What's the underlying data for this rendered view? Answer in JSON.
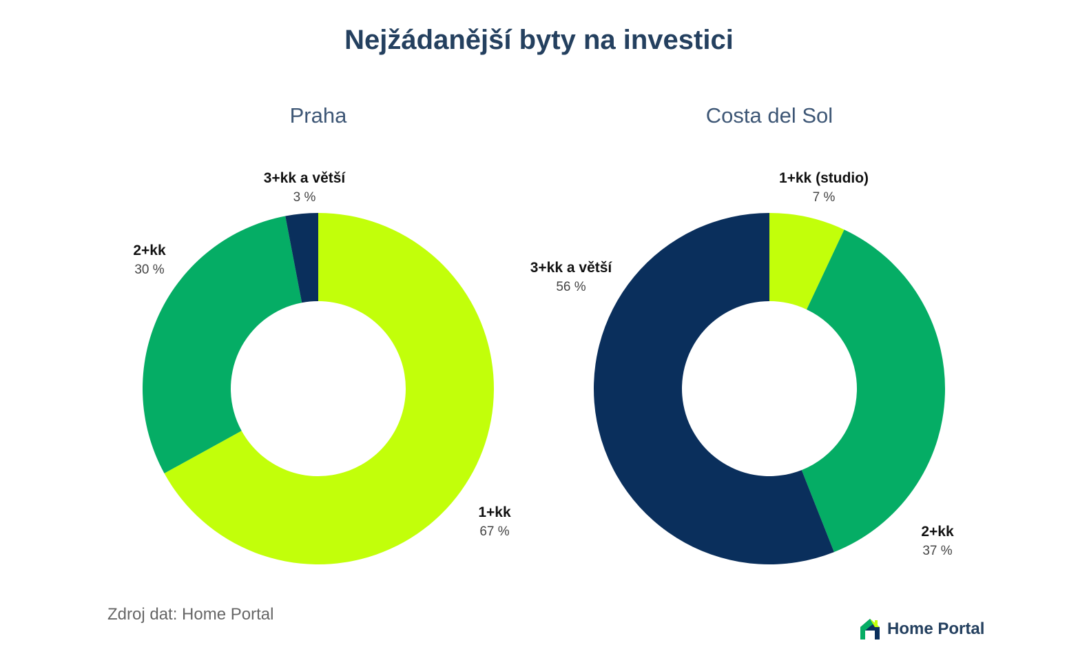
{
  "title": "Nejžádanější byty na investici",
  "source": "Zdroj dat: Home Portal",
  "logo": {
    "text": "Home Portal",
    "icon": "house-icon"
  },
  "colors": {
    "lime": "#c2ff0a",
    "green": "#05ad65",
    "navy": "#0a2f5c"
  },
  "chart_data": [
    {
      "type": "pie",
      "subtype": "donut",
      "title": "Praha",
      "slices": [
        {
          "label": "1+kk",
          "value": 67,
          "display": "67 %",
          "color": "#c2ff0a"
        },
        {
          "label": "2+kk",
          "value": 30,
          "display": "30 %",
          "color": "#05ad65"
        },
        {
          "label": "3+kk a větší",
          "value": 3,
          "display": "3 %",
          "color": "#0a2f5c"
        }
      ]
    },
    {
      "type": "pie",
      "subtype": "donut",
      "title": "Costa del Sol",
      "slices": [
        {
          "label": "1+kk (studio)",
          "value": 7,
          "display": "7 %",
          "color": "#c2ff0a"
        },
        {
          "label": "2+kk",
          "value": 37,
          "display": "37 %",
          "color": "#05ad65"
        },
        {
          "label": "3+kk a větší",
          "value": 56,
          "display": "56 %",
          "color": "#0a2f5c"
        }
      ]
    }
  ]
}
